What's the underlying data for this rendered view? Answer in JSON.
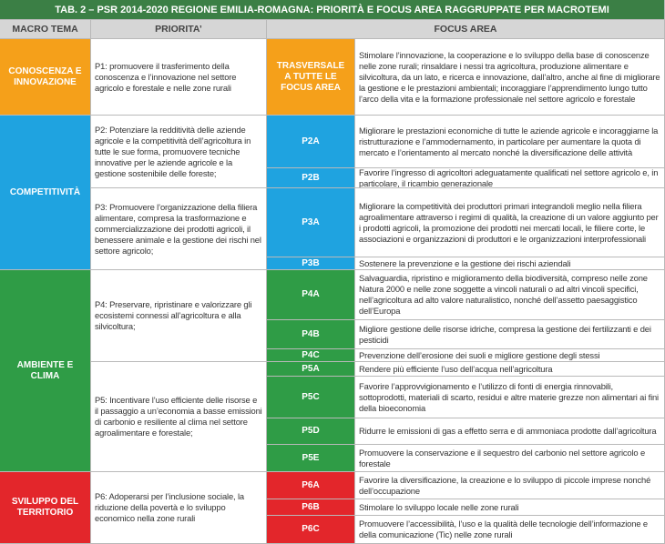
{
  "title": "TAB. 2 – PSR 2014-2020 REGIONE EMILIA-ROMAGNA: PRIORITÀ E FOCUS AREA RAGGRUPPATE PER MACROTEMI",
  "headers": [
    "MACRO TEMA",
    "PRIORITA’",
    "FOCUS AREA"
  ],
  "macro": [
    {
      "label": "CONOSCENZA E INNOVAZIONE",
      "color": "#f5a01a",
      "priorities": [
        {
          "text": "P1: promuovere il trasferimento della conoscenza e l’innovazione nel settore agricolo e forestale e nelle zone rurali",
          "focus": [
            {
              "code": "TRASVERSALE A TUTTE LE FOCUS AREA",
              "text": "Stimolare l’innovazione, la cooperazione e lo sviluppo della base di conoscenze nelle zone rurali; rinsaldare i nessi tra agricoltura, produzione alimentare e silvicoltura, da un lato, e ricerca e innovazione, dall’altro, anche al fine di migliorare la gestione e le prestazioni ambientali; incoraggiare l’apprendimento lungo tutto l’arco della vita e la formazione professionale nel settore agricolo e forestale"
            }
          ]
        }
      ]
    },
    {
      "label": "COMPETITIVITÀ",
      "color": "#1fa3e0",
      "priorities": [
        {
          "text": "P2: Potenziare la redditività delle aziende agricole e la competitività dell’agricoltura in tutte le sue forma, promuovere tecniche innovative per le aziende agricole e la gestione sostenibile delle foreste;",
          "focus": [
            {
              "code": "P2A",
              "text": "Migliorare le prestazioni economiche di tutte le aziende agricole e incoraggiarne la ristrutturazione e l’ammodernamento, in particolare per aumentare la quota di mercato e l’orientamento al mercato nonché la diversificazione delle attività"
            },
            {
              "code": "P2B",
              "text": "Favorire l’ingresso di agricoltori adeguatamente qualificati nel settore agricolo e, in particolare, il ricambio generazionale"
            }
          ]
        },
        {
          "text": "P3: Promuovere l’organizzazione della filiera alimentare, compresa la trasformazione e commercializzazione dei prodotti agricoli, il benessere animale e la gestione dei rischi nel settore agricolo;",
          "focus": [
            {
              "code": "P3A",
              "text": "Migliorare la competitività dei produttori primari integrandoli meglio nella filiera agroalimentare attraverso i regimi di qualità, la creazione di un valore aggiunto per i prodotti agricoli, la promozione dei prodotti nei mercati locali, le filiere corte, le associazioni e organizzazioni di produttori e le organizzazioni interprofessionali"
            },
            {
              "code": "P3B",
              "text": "Sostenere la prevenzione e la gestione dei rischi aziendali"
            }
          ]
        }
      ]
    },
    {
      "label": "AMBIENTE E CLIMA",
      "color": "#2f9c46",
      "priorities": [
        {
          "text": "P4: Preservare, ripristinare e valorizzare gli ecosistemi connessi all’agricoltura e alla silvicoltura;",
          "focus": [
            {
              "code": "P4A",
              "text": "Salvaguardia, ripristino e miglioramento della biodiversità, compreso nelle zone Natura 2000 e nelle zone soggette a vincoli naturali o ad altri vincoli specifici, nell’agricoltura ad alto valore naturalistico, nonché dell’assetto paesaggistico dell’Europa"
            },
            {
              "code": "P4B",
              "text": "Migliore gestione delle risorse idriche, compresa la gestione dei fertilizzanti e dei pesticidi"
            },
            {
              "code": "P4C",
              "text": "Prevenzione dell’erosione dei suoli e migliore gestione degli stessi"
            }
          ]
        },
        {
          "text": "P5: Incentivare l’uso efficiente delle risorse e il passaggio a un’economia a basse emissioni di carbonio e resiliente al clima nel settore agroalimentare e forestale;",
          "focus": [
            {
              "code": "P5A",
              "text": "Rendere più efficiente l’uso dell’acqua nell’agricoltura"
            },
            {
              "code": "P5C",
              "text": "Favorire l’approvvigionamento e l’utilizzo di fonti di energia rinnovabili, sottoprodotti, materiali di scarto, residui e altre materie grezze non alimentari ai fini della bioeconomia"
            },
            {
              "code": "P5D",
              "text": "Ridurre le emissioni di gas a effetto serra e di ammoniaca prodotte dall’agricoltura"
            },
            {
              "code": "P5E",
              "text": "Promuovere la conservazione e il sequestro del carbonio nel settore agricolo e forestale"
            }
          ]
        }
      ]
    },
    {
      "label": "SVILUPPO DEL TERRITORIO",
      "color": "#e3262b",
      "priorities": [
        {
          "text": "P6: Adoperarsi per l’inclusione sociale, la riduzione della povertà e lo sviluppo economico nella zone rurali",
          "focus": [
            {
              "code": "P6A",
              "text": "Favorire la diversificazione, la creazione e lo sviluppo di piccole imprese nonché dell’occupazione"
            },
            {
              "code": "P6B",
              "text": "Stimolare lo sviluppo locale nelle zone rurali"
            },
            {
              "code": "P6C",
              "text": "Promuovere l’accessibilità, l’uso e la qualità delle tecnologie dell’informazione e della comunicazione (Tic) nelle zone rurali"
            }
          ]
        }
      ]
    }
  ]
}
